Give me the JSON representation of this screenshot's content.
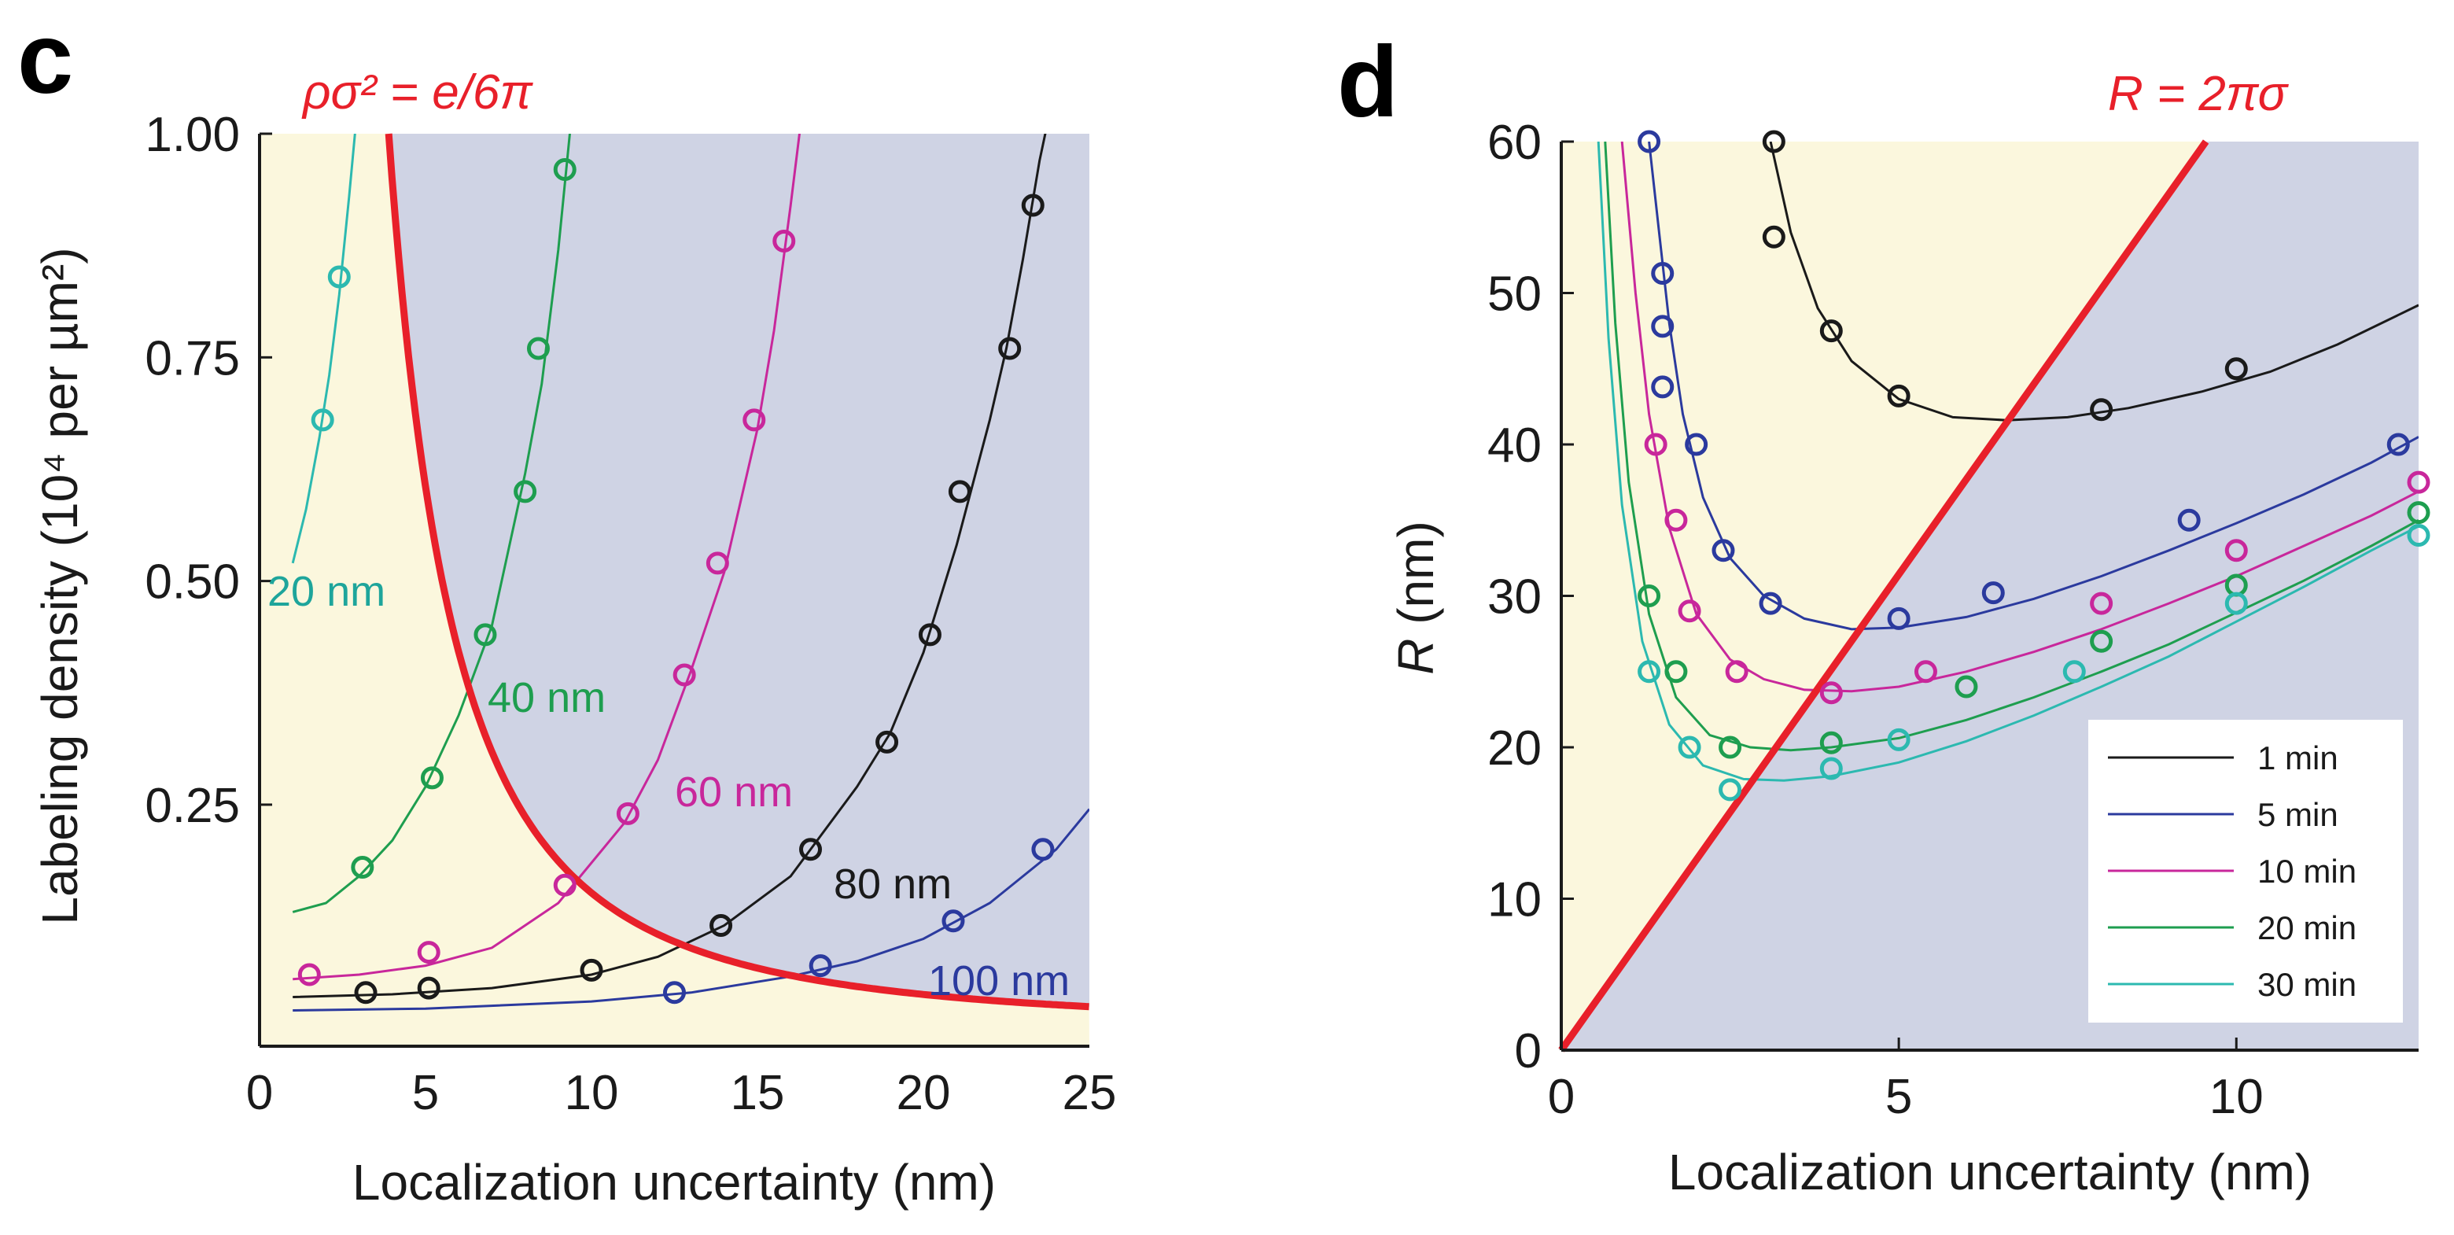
{
  "panels": {
    "c": {
      "letter": "c",
      "formula": "ρσ² = e/6π",
      "xlabel": "Localization uncertainty (nm)",
      "ylabel": "Labeling density (10⁴ per µm²)",
      "xticks": [
        "0",
        "5",
        "10",
        "15",
        "20",
        "25"
      ],
      "yticks": [
        "0.25",
        "0.50",
        "0.75",
        "1.00"
      ]
    },
    "d": {
      "letter": "d",
      "formula": "R = 2πσ",
      "xlabel": "Localization uncertainty (nm)",
      "ylabel": "R (nm)",
      "xticks": [
        "0",
        "5",
        "10"
      ],
      "yticks": [
        "0",
        "10",
        "20",
        "30",
        "40",
        "50",
        "60"
      ]
    }
  },
  "colors": {
    "region_low": "#fbf7dd",
    "region_high": "#cfd3e4",
    "boundary": "#e8202a",
    "black": "#1a1a1a",
    "blue": "#2b3a9e",
    "magenta": "#c8279b",
    "green": "#1e9e4f",
    "cyan": "#2cb9b0",
    "teal_label": "#1ea59b"
  },
  "chart_data": [
    {
      "type": "line",
      "panel": "c",
      "xlabel": "Localization uncertainty (nm)",
      "ylabel": "Labeling density (10⁴ per µm²)",
      "xlim": [
        0,
        25
      ],
      "ylim": [
        0,
        1.0
      ],
      "boundary": {
        "label": "ρσ² = e/6π"
      },
      "series": [
        {
          "name": "20 nm",
          "color": "cyan",
          "curve_x": [
            1,
            1.4,
            1.8,
            2.1,
            2.4,
            2.7,
            3.0,
            3.3
          ],
          "curve_y": [
            0.52,
            0.58,
            0.66,
            0.73,
            0.82,
            0.93,
            1.05,
            1.2
          ],
          "points": [
            [
              1.9,
              0.68
            ],
            [
              2.4,
              0.84
            ]
          ]
        },
        {
          "name": "40 nm",
          "color": "green",
          "curve_x": [
            1,
            2,
            3,
            4,
            5,
            6,
            7,
            8,
            8.5,
            9,
            9.4
          ],
          "curve_y": [
            0.13,
            0.14,
            0.17,
            0.21,
            0.27,
            0.35,
            0.45,
            0.62,
            0.72,
            0.87,
            1.02
          ],
          "points": [
            [
              3.1,
              0.18
            ],
            [
              5.2,
              0.28
            ],
            [
              6.8,
              0.44
            ],
            [
              8.0,
              0.6
            ],
            [
              8.4,
              0.76
            ],
            [
              9.2,
              0.96
            ]
          ]
        },
        {
          "name": "60 nm",
          "color": "magenta",
          "curve_x": [
            1,
            3,
            5,
            7,
            9,
            11,
            12,
            13,
            14,
            15,
            15.5,
            16,
            16.4
          ],
          "curve_y": [
            0.055,
            0.06,
            0.07,
            0.09,
            0.14,
            0.23,
            0.3,
            0.4,
            0.51,
            0.67,
            0.78,
            0.92,
            1.04
          ],
          "points": [
            [
              1.5,
              0.06
            ],
            [
              5.1,
              0.085
            ],
            [
              9.2,
              0.16
            ],
            [
              11.1,
              0.24
            ],
            [
              12.8,
              0.395
            ],
            [
              13.8,
              0.52
            ],
            [
              14.9,
              0.68
            ],
            [
              15.8,
              0.88
            ]
          ]
        },
        {
          "name": "80 nm",
          "color": "black",
          "curve_x": [
            1,
            4,
            7,
            10,
            12,
            14,
            16,
            18,
            19,
            20,
            21,
            22,
            22.5,
            23,
            23.5,
            23.9
          ],
          "curve_y": [
            0.035,
            0.038,
            0.045,
            0.06,
            0.08,
            0.115,
            0.17,
            0.27,
            0.33,
            0.42,
            0.54,
            0.68,
            0.76,
            0.86,
            0.97,
            1.04
          ],
          "points": [
            [
              3.2,
              0.04
            ],
            [
              5.1,
              0.045
            ],
            [
              10.0,
              0.065
            ],
            [
              13.9,
              0.115
            ],
            [
              16.6,
              0.2
            ],
            [
              18.9,
              0.32
            ],
            [
              20.2,
              0.44
            ],
            [
              21.1,
              0.6
            ],
            [
              22.6,
              0.76
            ],
            [
              23.3,
              0.92
            ]
          ]
        },
        {
          "name": "100 nm",
          "color": "blue",
          "curve_x": [
            1,
            5,
            10,
            13,
            16,
            18,
            20,
            22,
            24,
            25
          ],
          "curve_y": [
            0.02,
            0.022,
            0.03,
            0.04,
            0.058,
            0.075,
            0.1,
            0.14,
            0.2,
            0.245
          ],
          "points": [
            [
              12.5,
              0.04
            ],
            [
              16.9,
              0.07
            ],
            [
              20.9,
              0.12
            ],
            [
              23.6,
              0.2
            ]
          ]
        }
      ]
    },
    {
      "type": "line",
      "panel": "d",
      "xlabel": "Localization uncertainty (nm)",
      "ylabel": "R (nm)",
      "xlim": [
        0,
        12.7
      ],
      "ylim": [
        0,
        60
      ],
      "boundary": {
        "label": "R = 2πσ"
      },
      "legend": {
        "position": "bottom-right",
        "entries": [
          "1 min",
          "5 min",
          "10 min",
          "20 min",
          "30 min"
        ]
      },
      "series": [
        {
          "name": "1 min",
          "color": "black",
          "curve_x": [
            3.1,
            3.4,
            3.8,
            4.3,
            5.0,
            5.8,
            6.6,
            7.5,
            8.4,
            9.5,
            10.5,
            11.5,
            12.7
          ],
          "curve_y": [
            60,
            54,
            49,
            45.5,
            43,
            41.8,
            41.6,
            41.8,
            42.4,
            43.5,
            44.8,
            46.6,
            49.2
          ],
          "points": [
            [
              3.15,
              60
            ],
            [
              3.15,
              53.7
            ],
            [
              4.0,
              47.5
            ],
            [
              5.0,
              43.2
            ],
            [
              8.0,
              42.3
            ],
            [
              10.0,
              45.0
            ]
          ]
        },
        {
          "name": "5 min",
          "color": "blue",
          "curve_x": [
            1.3,
            1.45,
            1.6,
            1.8,
            2.1,
            2.5,
            3.0,
            3.6,
            4.3,
            5.0,
            6.0,
            7.0,
            8.0,
            9.0,
            10.0,
            11.0,
            12.0,
            12.7
          ],
          "curve_y": [
            60,
            54,
            48,
            42,
            36.5,
            32.5,
            30,
            28.5,
            27.8,
            27.9,
            28.6,
            29.8,
            31.3,
            33.0,
            34.8,
            36.7,
            38.8,
            40.5
          ],
          "points": [
            [
              1.3,
              60
            ],
            [
              1.5,
              51.3
            ],
            [
              1.5,
              47.8
            ],
            [
              1.5,
              43.8
            ],
            [
              2.0,
              40.0
            ],
            [
              2.4,
              33.0
            ],
            [
              3.1,
              29.5
            ],
            [
              5.0,
              28.5
            ],
            [
              6.4,
              30.2
            ],
            [
              9.3,
              35.0
            ],
            [
              12.4,
              40.0
            ]
          ]
        },
        {
          "name": "10 min",
          "color": "magenta",
          "curve_x": [
            0.9,
            1.1,
            1.3,
            1.6,
            2.0,
            2.5,
            3.0,
            3.6,
            4.3,
            5.0,
            6.0,
            7.0,
            8.0,
            9.0,
            10.0,
            11.0,
            12.0,
            12.7
          ],
          "curve_y": [
            60,
            50,
            42,
            34.5,
            28.8,
            25.8,
            24.5,
            23.8,
            23.7,
            24.0,
            25.0,
            26.3,
            27.8,
            29.5,
            31.3,
            33.3,
            35.3,
            36.9
          ],
          "points": [
            [
              1.4,
              40.0
            ],
            [
              1.7,
              35.0
            ],
            [
              1.9,
              29.0
            ],
            [
              2.6,
              25.0
            ],
            [
              4.0,
              23.6
            ],
            [
              5.4,
              25.0
            ],
            [
              8.0,
              29.5
            ],
            [
              10.0,
              33.0
            ],
            [
              12.7,
              37.5
            ]
          ]
        },
        {
          "name": "20 min",
          "color": "green",
          "curve_x": [
            0.65,
            0.8,
            1.0,
            1.3,
            1.7,
            2.2,
            2.8,
            3.4,
            4.0,
            5.0,
            6.0,
            7.0,
            8.0,
            9.0,
            10.0,
            11.0,
            12.0,
            12.7
          ],
          "curve_y": [
            60,
            48,
            37.5,
            28.8,
            23.3,
            20.8,
            20.0,
            19.8,
            20.0,
            20.6,
            21.8,
            23.3,
            25.0,
            26.8,
            28.9,
            31.0,
            33.3,
            35.0
          ],
          "points": [
            [
              1.3,
              30.0
            ],
            [
              1.7,
              25.0
            ],
            [
              2.5,
              20.0
            ],
            [
              4.0,
              20.3
            ],
            [
              6.0,
              24.0
            ],
            [
              8.0,
              27.0
            ],
            [
              10.0,
              30.7
            ],
            [
              12.7,
              35.5
            ]
          ]
        },
        {
          "name": "30 min",
          "color": "cyan",
          "curve_x": [
            0.55,
            0.7,
            0.9,
            1.2,
            1.6,
            2.1,
            2.7,
            3.3,
            4.0,
            5.0,
            6.0,
            7.0,
            8.0,
            9.0,
            10.0,
            11.0,
            12.0,
            12.7
          ],
          "curve_y": [
            60,
            47,
            36,
            27,
            21.5,
            18.8,
            17.9,
            17.8,
            18.1,
            19.0,
            20.4,
            22.1,
            24.0,
            26.0,
            28.3,
            30.6,
            33.0,
            34.6
          ],
          "points": [
            [
              1.3,
              25.0
            ],
            [
              1.9,
              20.0
            ],
            [
              2.5,
              17.2
            ],
            [
              4.0,
              18.6
            ],
            [
              5.0,
              20.5
            ],
            [
              7.6,
              25.0
            ],
            [
              10.0,
              29.5
            ],
            [
              12.7,
              34.0
            ]
          ]
        }
      ]
    }
  ]
}
